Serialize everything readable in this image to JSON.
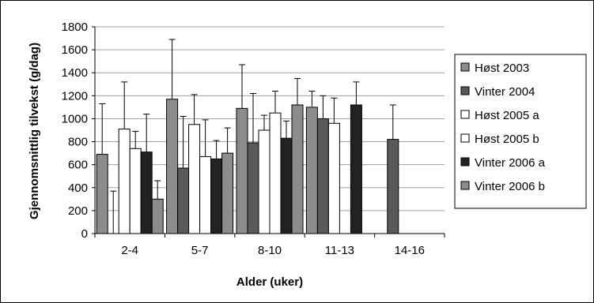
{
  "chart_data": {
    "type": "bar",
    "title": "",
    "xlabel": "Alder (uker)",
    "ylabel": "Gjennomsnittlig tilvekst (g/dag)",
    "ylim": [
      0,
      1800
    ],
    "yticks": [
      0,
      200,
      400,
      600,
      800,
      1000,
      1200,
      1400,
      1600,
      1800
    ],
    "grid": true,
    "legend_position": "right",
    "categories": [
      "2-4",
      "5-7",
      "8-10",
      "11-13",
      "14-16"
    ],
    "series": [
      {
        "name": "Høst 2003",
        "color": "#8c8c8c",
        "values": [
          690,
          1170,
          1090,
          1100,
          null
        ],
        "errors": [
          440,
          520,
          380,
          140,
          null
        ]
      },
      {
        "name": "Vinter 2004",
        "color": "#5a5a5a",
        "values": [
          0,
          570,
          790,
          1000,
          820
        ],
        "errors": [
          370,
          450,
          430,
          200,
          300
        ]
      },
      {
        "name": "Høst 2005 a",
        "color": "#ffffff",
        "values": [
          910,
          950,
          900,
          960,
          null
        ],
        "errors": [
          410,
          260,
          130,
          220,
          null
        ]
      },
      {
        "name": "Høst 2005 b",
        "color": "#ffffff",
        "values": [
          740,
          670,
          1050,
          null,
          null
        ],
        "errors": [
          150,
          320,
          190,
          null,
          null
        ]
      },
      {
        "name": "Vinter 2006 a",
        "color": "#222222",
        "values": [
          710,
          650,
          830,
          1120,
          null
        ],
        "errors": [
          330,
          160,
          150,
          200,
          null
        ]
      },
      {
        "name": "Vinter 2006 b",
        "color": "#8c8c8c",
        "values": [
          300,
          700,
          1120,
          null,
          null
        ],
        "errors": [
          160,
          220,
          230,
          null,
          null
        ]
      }
    ]
  }
}
